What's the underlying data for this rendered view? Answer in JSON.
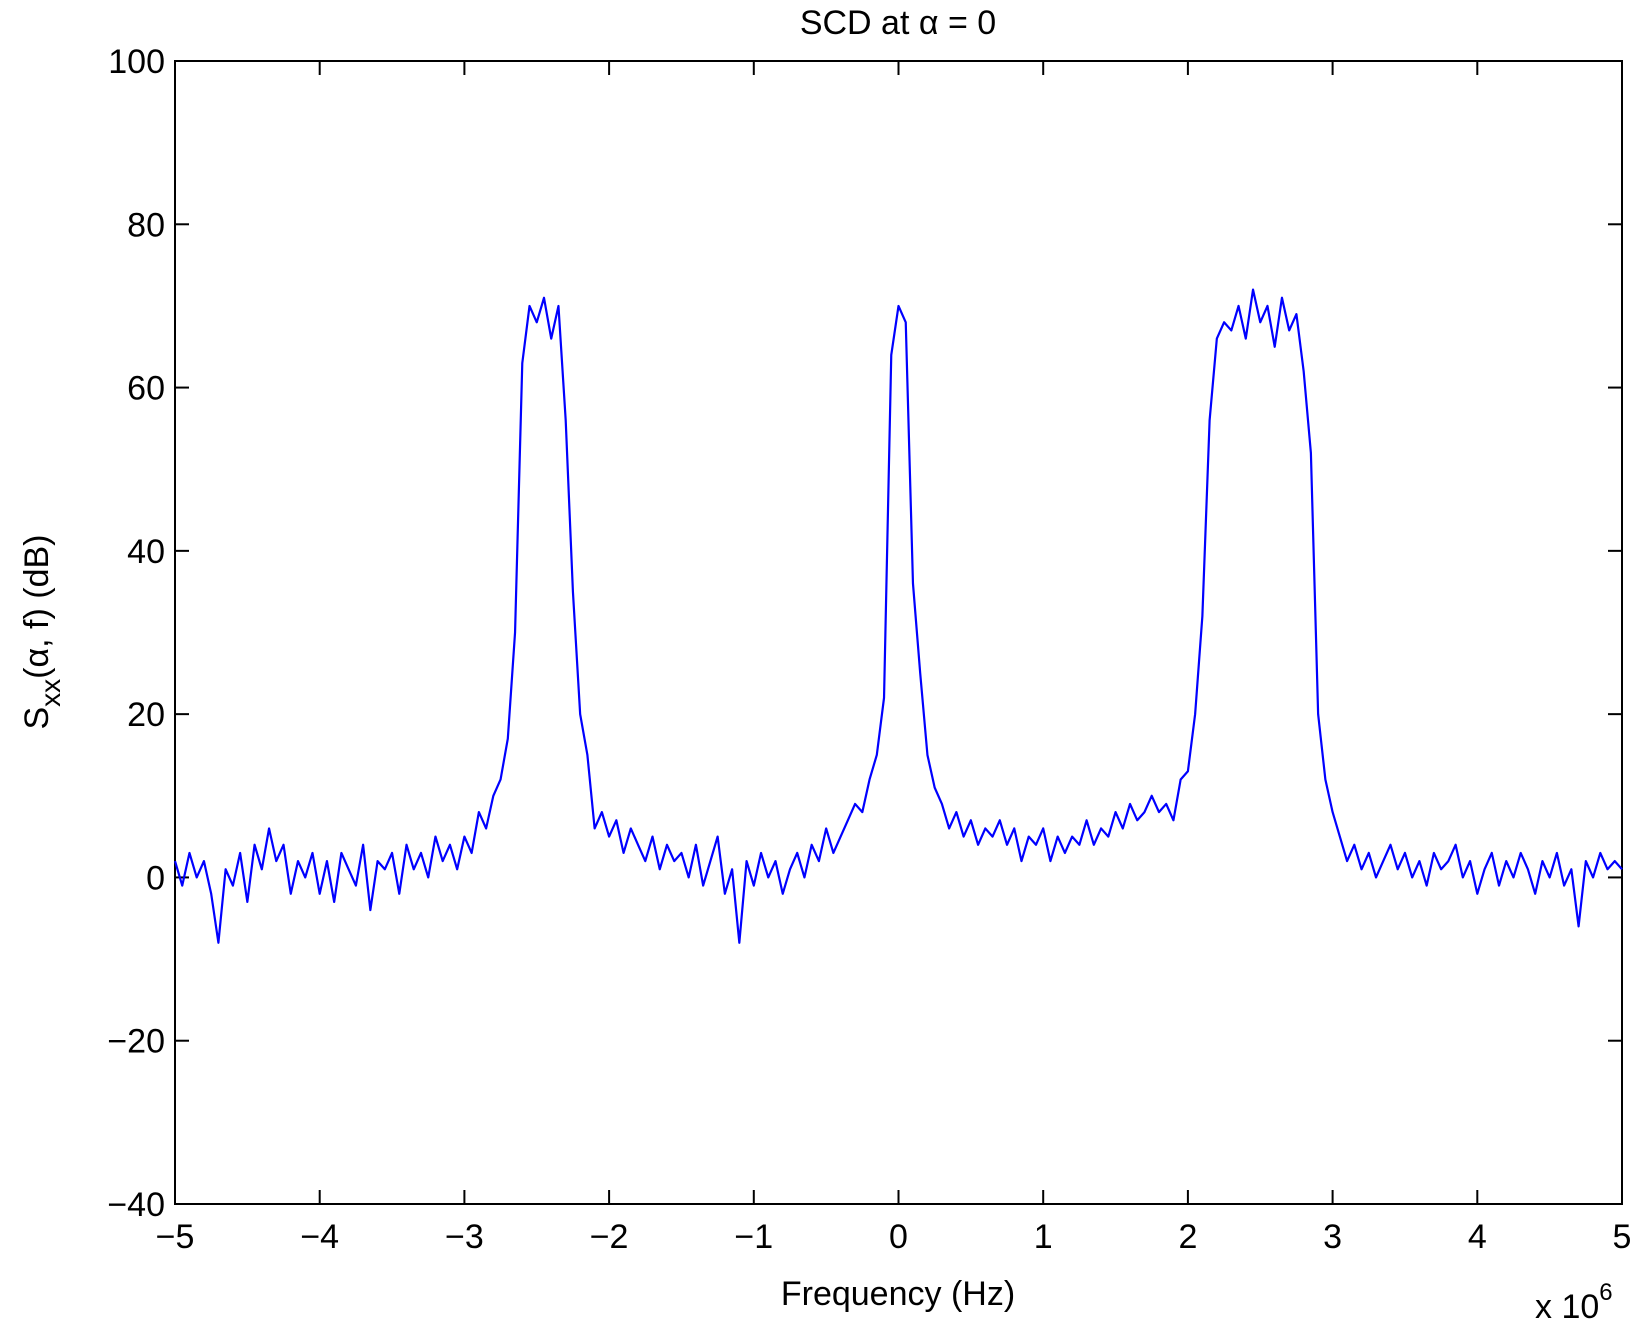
{
  "chart_data": {
    "type": "line",
    "title": "SCD at α = 0",
    "xlabel": "Frequency (Hz)",
    "x_multiplier": {
      "base": "x 10",
      "exponent": "6"
    },
    "ylabel": {
      "base": "S",
      "sub": "xx",
      "rest": "(α, f) (dB)"
    },
    "xlim": [
      -5,
      5
    ],
    "xticks": [
      {
        "value": -5,
        "label": "−5"
      },
      {
        "value": -4,
        "label": "−4"
      },
      {
        "value": -3,
        "label": "−3"
      },
      {
        "value": -2,
        "label": "−2"
      },
      {
        "value": -1,
        "label": "−1"
      },
      0,
      1,
      2,
      3,
      4,
      5
    ],
    "ylim": [
      -40,
      100
    ],
    "yticks": [
      {
        "value": -40,
        "label": "−40"
      },
      {
        "value": -20,
        "label": "−20"
      },
      0,
      20,
      40,
      60,
      80,
      100
    ],
    "grid": false,
    "x": [
      -5.0,
      -4.95,
      -4.9,
      -4.85,
      -4.8,
      -4.75,
      -4.7,
      -4.65,
      -4.6,
      -4.55,
      -4.5,
      -4.45,
      -4.4,
      -4.35,
      -4.3,
      -4.25,
      -4.2,
      -4.15,
      -4.1,
      -4.05,
      -4.0,
      -3.95,
      -3.9,
      -3.85,
      -3.8,
      -3.75,
      -3.7,
      -3.65,
      -3.6,
      -3.55,
      -3.5,
      -3.45,
      -3.4,
      -3.35,
      -3.3,
      -3.25,
      -3.2,
      -3.15,
      -3.1,
      -3.05,
      -3.0,
      -2.95,
      -2.9,
      -2.85,
      -2.8,
      -2.75,
      -2.7,
      -2.65,
      -2.6,
      -2.55,
      -2.5,
      -2.45,
      -2.4,
      -2.35,
      -2.3,
      -2.25,
      -2.2,
      -2.15,
      -2.1,
      -2.05,
      -2.0,
      -1.95,
      -1.9,
      -1.85,
      -1.8,
      -1.75,
      -1.7,
      -1.65,
      -1.6,
      -1.55,
      -1.5,
      -1.45,
      -1.4,
      -1.35,
      -1.3,
      -1.25,
      -1.2,
      -1.15,
      -1.1,
      -1.05,
      -1.0,
      -0.95,
      -0.9,
      -0.85,
      -0.8,
      -0.75,
      -0.7,
      -0.65,
      -0.6,
      -0.55,
      -0.5,
      -0.45,
      -0.4,
      -0.35,
      -0.3,
      -0.25,
      -0.2,
      -0.15,
      -0.1,
      -0.05,
      0.0,
      0.05,
      0.1,
      0.15,
      0.2,
      0.25,
      0.3,
      0.35,
      0.4,
      0.45,
      0.5,
      0.55,
      0.6,
      0.65,
      0.7,
      0.75,
      0.8,
      0.85,
      0.9,
      0.95,
      1.0,
      1.05,
      1.1,
      1.15,
      1.2,
      1.25,
      1.3,
      1.35,
      1.4,
      1.45,
      1.5,
      1.55,
      1.6,
      1.65,
      1.7,
      1.75,
      1.8,
      1.85,
      1.9,
      1.95,
      2.0,
      2.05,
      2.1,
      2.15,
      2.2,
      2.25,
      2.3,
      2.35,
      2.4,
      2.45,
      2.5,
      2.55,
      2.6,
      2.65,
      2.7,
      2.75,
      2.8,
      2.85,
      2.9,
      2.95,
      3.0,
      3.05,
      3.1,
      3.15,
      3.2,
      3.25,
      3.3,
      3.35,
      3.4,
      3.45,
      3.5,
      3.55,
      3.6,
      3.65,
      3.7,
      3.75,
      3.8,
      3.85,
      3.9,
      3.95,
      4.0,
      4.05,
      4.1,
      4.15,
      4.2,
      4.25,
      4.3,
      4.35,
      4.4,
      4.45,
      4.5,
      4.55,
      4.6,
      4.65,
      4.7,
      4.75,
      4.8,
      4.85,
      4.9,
      4.95,
      5.0
    ],
    "series": [
      {
        "color": "#0000ff",
        "values": [
          2,
          -1,
          3,
          0,
          2,
          -2,
          -8,
          1,
          -1,
          3,
          -3,
          4,
          1,
          6,
          2,
          4,
          -2,
          2,
          0,
          3,
          -2,
          2,
          -3,
          3,
          1,
          -1,
          4,
          -4,
          2,
          1,
          3,
          -2,
          4,
          1,
          3,
          0,
          5,
          2,
          4,
          1,
          5,
          3,
          8,
          6,
          10,
          12,
          17,
          30,
          63,
          70,
          68,
          71,
          66,
          70,
          56,
          35,
          20,
          15,
          6,
          8,
          5,
          7,
          3,
          6,
          4,
          2,
          5,
          1,
          4,
          2,
          3,
          0,
          4,
          -1,
          2,
          5,
          -2,
          1,
          -8,
          2,
          -1,
          3,
          0,
          2,
          -2,
          1,
          3,
          0,
          4,
          2,
          6,
          3,
          5,
          7,
          9,
          8,
          12,
          15,
          22,
          64,
          70,
          68,
          36,
          25,
          15,
          11,
          9,
          6,
          8,
          5,
          7,
          4,
          6,
          5,
          7,
          4,
          6,
          2,
          5,
          4,
          6,
          2,
          5,
          3,
          5,
          4,
          7,
          4,
          6,
          5,
          8,
          6,
          9,
          7,
          8,
          10,
          8,
          9,
          7,
          12,
          13,
          20,
          32,
          56,
          66,
          68,
          67,
          70,
          66,
          72,
          68,
          70,
          65,
          71,
          67,
          69,
          62,
          52,
          20,
          12,
          8,
          5,
          2,
          4,
          1,
          3,
          0,
          2,
          4,
          1,
          3,
          0,
          2,
          -1,
          3,
          1,
          2,
          4,
          0,
          2,
          -2,
          1,
          3,
          -1,
          2,
          0,
          3,
          1,
          -2,
          2,
          0,
          3,
          -1,
          1,
          -6,
          2,
          0,
          3,
          1,
          2,
          1
        ]
      }
    ]
  }
}
